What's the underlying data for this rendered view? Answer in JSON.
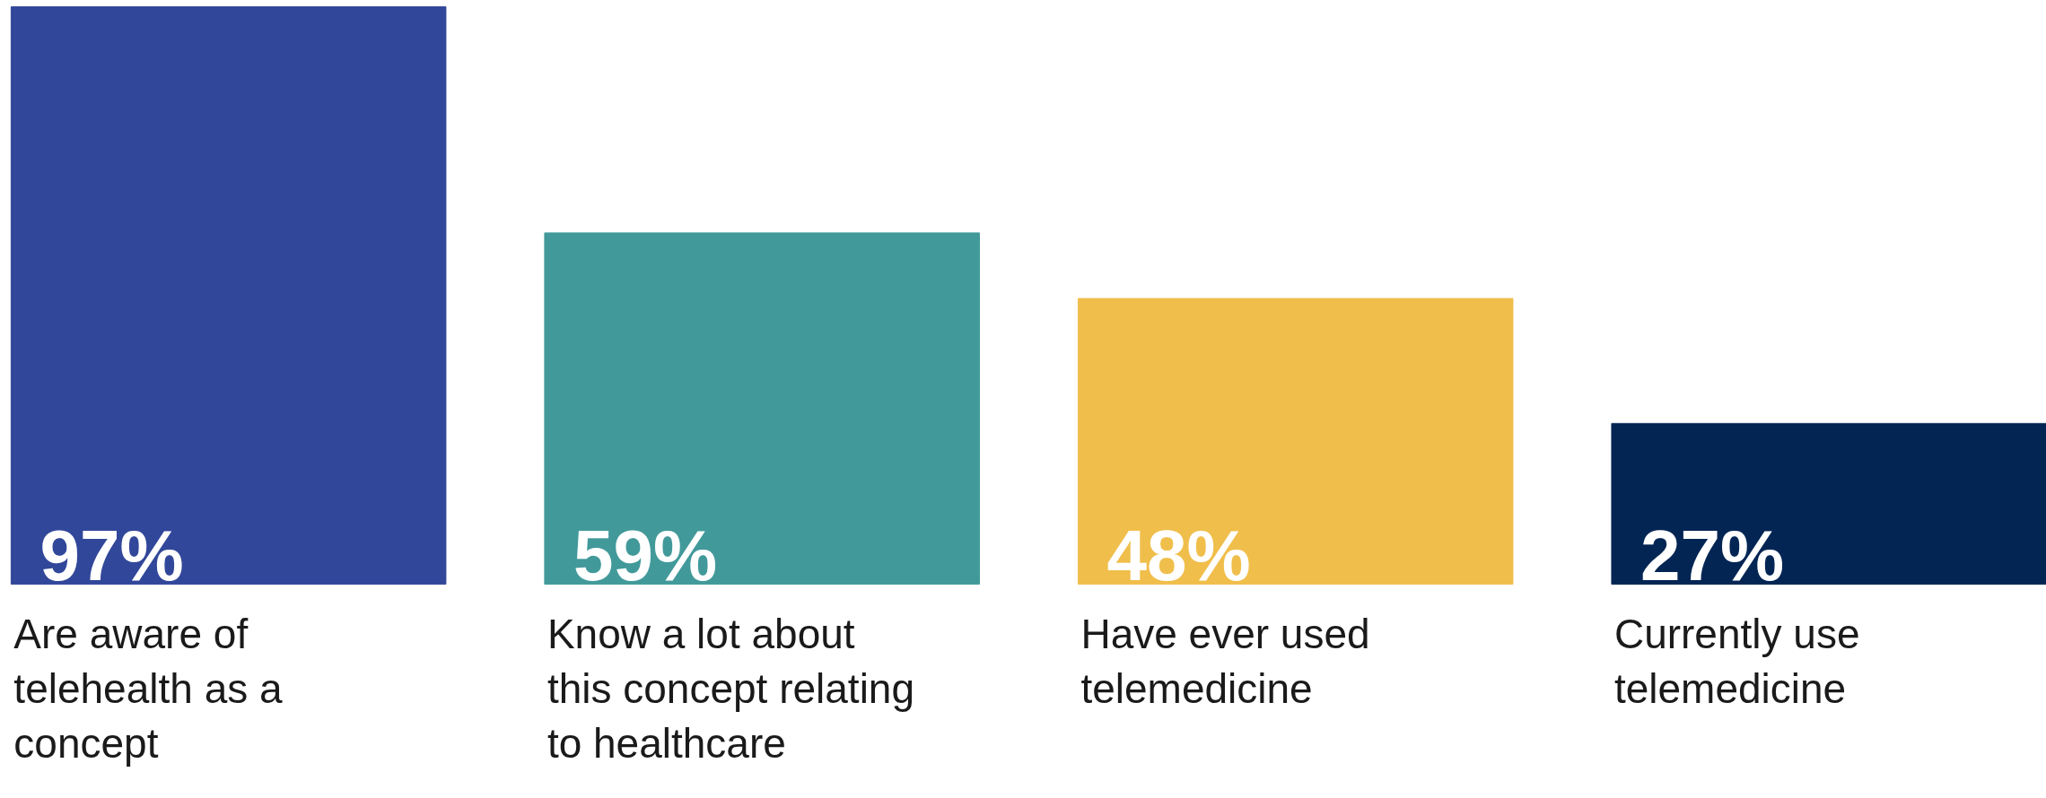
{
  "chart_data": {
    "type": "bar",
    "categories": [
      "Are aware of\ntelehealth as a\nconcept",
      "Know a lot about\nthis concept relating\nto healthcare",
      "Have ever used\ntelemedicine",
      "Currently use\ntelemedicine"
    ],
    "values": [
      97,
      59,
      48,
      27
    ],
    "value_labels": [
      "97%",
      "59%",
      "48%",
      "27%"
    ],
    "colors": [
      "#31479a",
      "#42999a",
      "#f0be4b",
      "#022554"
    ]
  }
}
